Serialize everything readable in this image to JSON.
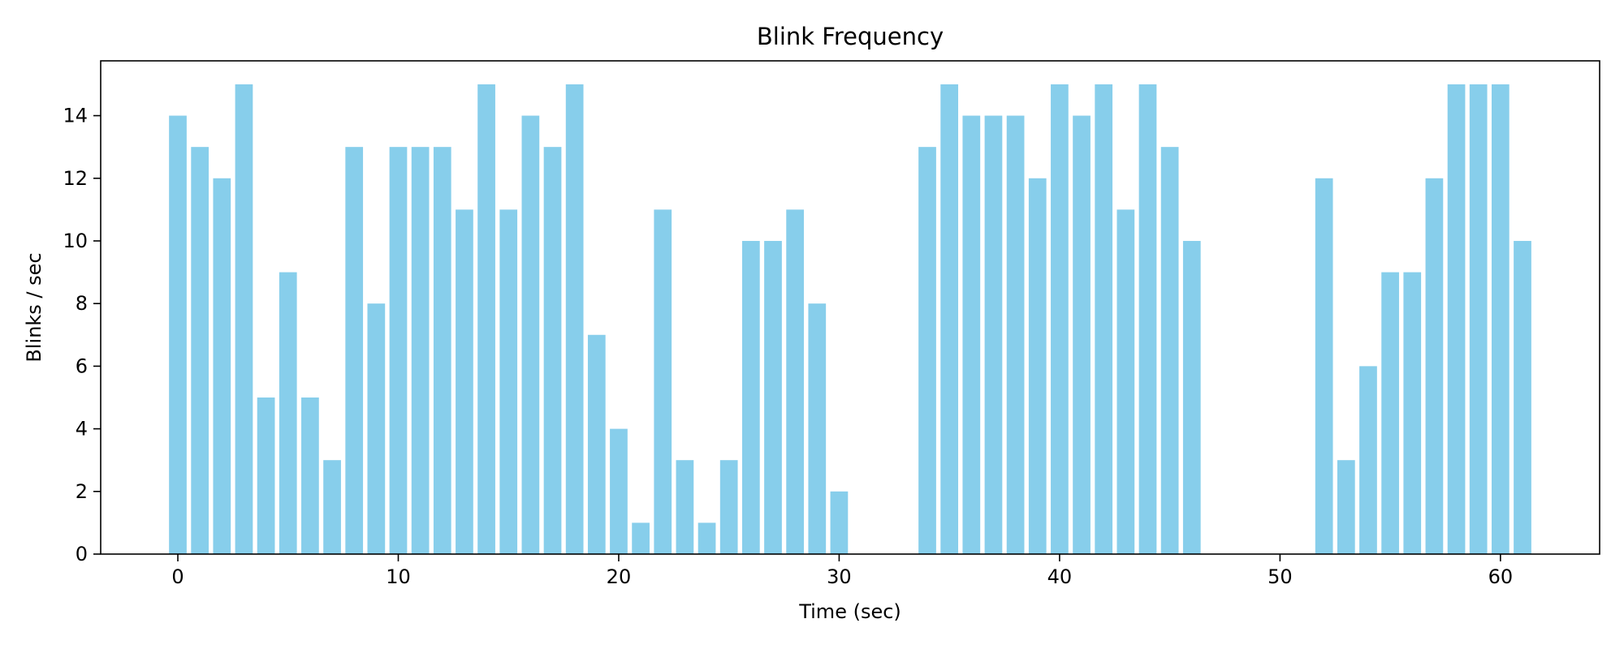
{
  "chart_data": {
    "type": "bar",
    "title": "Blink Frequency",
    "xlabel": "Time (sec)",
    "ylabel": "Blinks / sec",
    "xlim": [
      -3.5,
      64.5
    ],
    "ylim": [
      0,
      15.75
    ],
    "xticks": [
      0,
      10,
      20,
      30,
      40,
      50,
      60
    ],
    "yticks": [
      0,
      2,
      4,
      6,
      8,
      10,
      12,
      14
    ],
    "bar_color": "#87ceeb",
    "grid": false,
    "x": [
      0,
      1,
      2,
      3,
      4,
      5,
      6,
      7,
      8,
      9,
      10,
      11,
      12,
      13,
      14,
      15,
      16,
      17,
      18,
      19,
      20,
      21,
      22,
      23,
      24,
      25,
      26,
      27,
      28,
      29,
      30,
      34,
      35,
      36,
      37,
      38,
      39,
      40,
      41,
      42,
      43,
      44,
      45,
      46,
      52,
      53,
      54,
      55,
      56,
      57,
      58,
      59,
      60,
      61
    ],
    "values": [
      14,
      13,
      12,
      15,
      5,
      9,
      5,
      3,
      13,
      8,
      13,
      13,
      13,
      11,
      15,
      11,
      14,
      13,
      15,
      7,
      4,
      1,
      11,
      3,
      1,
      3,
      10,
      10,
      11,
      8,
      2,
      13,
      15,
      14,
      14,
      14,
      12,
      15,
      14,
      15,
      11,
      15,
      13,
      10,
      12,
      3,
      6,
      9,
      9,
      12,
      15,
      15,
      15,
      10
    ]
  }
}
